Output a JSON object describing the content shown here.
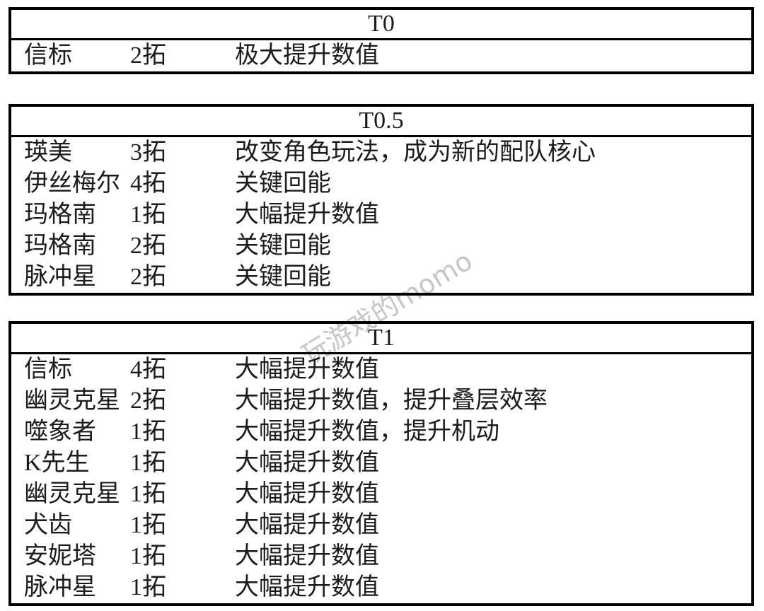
{
  "page": {
    "background": "#ffffff",
    "text_color": "#1c1c1c",
    "border_color": "#000000"
  },
  "watermark": {
    "text": "玩游戏的momo",
    "color": "#c6c6c6"
  },
  "tables": [
    {
      "tier": "T0",
      "rows": [
        {
          "name": "信标",
          "dupes": "2拓",
          "note": "极大提升数值"
        }
      ]
    },
    {
      "tier": "T0.5",
      "rows": [
        {
          "name": "瑛美",
          "dupes": "3拓",
          "note": "改变角色玩法，成为新的配队核心"
        },
        {
          "name": "伊丝梅尔",
          "dupes": "4拓",
          "note": "关键回能"
        },
        {
          "name": "玛格南",
          "dupes": "1拓",
          "note": "大幅提升数值"
        },
        {
          "name": "玛格南",
          "dupes": "2拓",
          "note": "关键回能"
        },
        {
          "name": "脉冲星",
          "dupes": "2拓",
          "note": "关键回能"
        }
      ]
    },
    {
      "tier": "T1",
      "rows": [
        {
          "name": "信标",
          "dupes": "4拓",
          "note": "大幅提升数值"
        },
        {
          "name": "幽灵克星",
          "dupes": "2拓",
          "note": "大幅提升数值，提升叠层效率"
        },
        {
          "name": "噬象者",
          "dupes": "1拓",
          "note": "大幅提升数值，提升机动"
        },
        {
          "name": "K先生",
          "dupes": "1拓",
          "note": "大幅提升数值"
        },
        {
          "name": "幽灵克星",
          "dupes": "1拓",
          "note": "大幅提升数值"
        },
        {
          "name": "犬齿",
          "dupes": "1拓",
          "note": "大幅提升数值"
        },
        {
          "name": "安妮塔",
          "dupes": "1拓",
          "note": "大幅提升数值"
        },
        {
          "name": "脉冲星",
          "dupes": "1拓",
          "note": "大幅提升数值"
        }
      ]
    }
  ]
}
